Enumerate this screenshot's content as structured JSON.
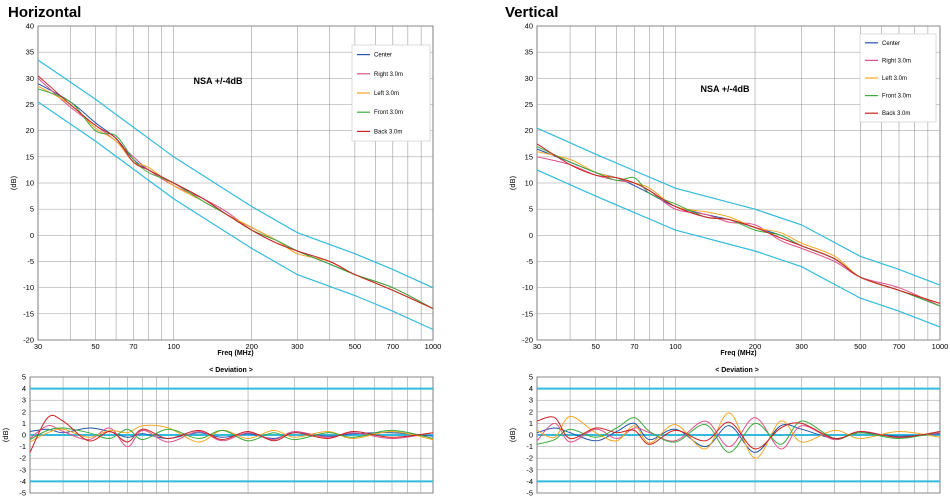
{
  "chart_data": [
    {
      "id": "h-main",
      "type": "line",
      "title": "Horizontal",
      "annotation": "NSA  +/-4dB",
      "xlabel": "Freq (MHz)",
      "ylabel": "(dB)",
      "xscale": "log",
      "xlim": [
        30,
        1000
      ],
      "ylim": [
        -20,
        40
      ],
      "yticks": [
        40,
        35,
        30,
        25,
        20,
        15,
        10,
        5,
        0,
        -5,
        -10,
        -15,
        -20
      ],
      "xtick_labels": [
        "30",
        "50",
        "70",
        "100",
        "200",
        "300",
        "500",
        "700",
        "1000"
      ],
      "xtick_values": [
        30,
        50,
        70,
        100,
        200,
        300,
        500,
        700,
        1000
      ],
      "legend_position": "top-right",
      "limit_lines": [
        {
          "name": "upper",
          "color": "#33BBDD",
          "x": [
            30,
            50,
            100,
            200,
            300,
            500,
            700,
            1000
          ],
          "y": [
            33.5,
            26,
            15,
            5.5,
            0.5,
            -3.5,
            -6.5,
            -10
          ]
        },
        {
          "name": "lower",
          "color": "#33BBDD",
          "x": [
            30,
            50,
            100,
            200,
            300,
            500,
            700,
            1000
          ],
          "y": [
            25.5,
            18,
            7,
            -2.5,
            -7.5,
            -11.5,
            -14.5,
            -18
          ]
        }
      ],
      "series": [
        {
          "name": "Center",
          "color": "#2255AA",
          "x": [
            30,
            40,
            50,
            60,
            70,
            80,
            100,
            130,
            160,
            200,
            250,
            300,
            400,
            500,
            700,
            1000
          ],
          "y": [
            29,
            25.5,
            21.5,
            18.5,
            14.5,
            12.5,
            10,
            7,
            4,
            1.5,
            -1,
            -3,
            -5.5,
            -7.5,
            -10.5,
            -14
          ]
        },
        {
          "name": "Right 3.0m",
          "color": "#E0508C",
          "x": [
            30,
            40,
            50,
            60,
            70,
            80,
            100,
            130,
            160,
            200,
            250,
            300,
            400,
            500,
            700,
            1000
          ],
          "y": [
            30,
            24.5,
            21,
            18,
            15,
            12.5,
            9.5,
            7,
            4.5,
            1,
            -1.5,
            -3,
            -5,
            -7.5,
            -10,
            -14
          ]
        },
        {
          "name": "Left 3.0m",
          "color": "#F5A623",
          "x": [
            30,
            40,
            50,
            60,
            70,
            80,
            100,
            130,
            160,
            200,
            250,
            300,
            400,
            500,
            700,
            1000
          ],
          "y": [
            28.5,
            25,
            20.5,
            18,
            14,
            13,
            9.5,
            6.5,
            4,
            1.5,
            -1,
            -3.5,
            -5,
            -7.5,
            -10.5,
            -14
          ]
        },
        {
          "name": "Front 3.0m",
          "color": "#3DAA3D",
          "x": [
            30,
            40,
            50,
            60,
            70,
            80,
            100,
            130,
            160,
            200,
            250,
            300,
            400,
            500,
            700,
            1000
          ],
          "y": [
            28,
            25.5,
            20,
            19,
            14.5,
            12,
            10,
            6.5,
            4,
            1,
            -1,
            -3,
            -5.5,
            -7.5,
            -10,
            -14
          ]
        },
        {
          "name": "Back 3.0m",
          "color": "#CC2222",
          "x": [
            30,
            40,
            50,
            60,
            70,
            80,
            100,
            130,
            160,
            200,
            250,
            300,
            400,
            500,
            700,
            1000
          ],
          "y": [
            30.5,
            25,
            21,
            18.5,
            14,
            12.5,
            10,
            7,
            4,
            1,
            -1.5,
            -3,
            -5,
            -7.5,
            -10.5,
            -14
          ]
        }
      ]
    },
    {
      "id": "v-main",
      "type": "line",
      "title": "Vertical",
      "annotation": "NSA  +/-4dB",
      "xlabel": "Freq (MHz)",
      "ylabel": "(dB)",
      "xscale": "log",
      "xlim": [
        30,
        1000
      ],
      "ylim": [
        -20,
        40
      ],
      "yticks": [
        40,
        35,
        30,
        25,
        20,
        15,
        10,
        5,
        0,
        -5,
        -10,
        -15,
        -20
      ],
      "xtick_labels": [
        "30",
        "50",
        "70",
        "100",
        "200",
        "300",
        "500",
        "700",
        "1000"
      ],
      "xtick_values": [
        30,
        50,
        70,
        100,
        200,
        300,
        500,
        700,
        1000
      ],
      "legend_position": "top-right",
      "limit_lines": [
        {
          "name": "upper",
          "color": "#33BBDD",
          "x": [
            30,
            50,
            100,
            200,
            300,
            500,
            700,
            1000
          ],
          "y": [
            20.5,
            15.5,
            9,
            5,
            2,
            -4,
            -6.5,
            -9.5
          ]
        },
        {
          "name": "lower",
          "color": "#33BBDD",
          "x": [
            30,
            50,
            100,
            200,
            300,
            500,
            700,
            1000
          ],
          "y": [
            12.5,
            7.5,
            1,
            -3,
            -6,
            -12,
            -14.5,
            -17.5
          ]
        }
      ],
      "series": [
        {
          "name": "Center",
          "color": "#2255AA",
          "x": [
            30,
            40,
            50,
            60,
            70,
            80,
            100,
            130,
            160,
            200,
            250,
            300,
            400,
            500,
            700,
            1000
          ],
          "y": [
            16.5,
            14,
            12,
            11,
            9.5,
            8,
            5.5,
            4,
            3,
            1.5,
            0,
            -2,
            -4.5,
            -8,
            -10.5,
            -13.5
          ]
        },
        {
          "name": "Right 3.0m",
          "color": "#E0508C",
          "x": [
            30,
            40,
            50,
            60,
            70,
            80,
            100,
            130,
            160,
            200,
            250,
            300,
            400,
            500,
            700,
            1000
          ],
          "y": [
            15,
            13.5,
            11.5,
            10.5,
            10,
            8.5,
            5,
            4,
            2.5,
            2,
            -1,
            -2.5,
            -5,
            -8,
            -10,
            -13.5
          ]
        },
        {
          "name": "Left 3.0m",
          "color": "#F5A623",
          "x": [
            30,
            40,
            50,
            60,
            70,
            80,
            100,
            130,
            160,
            200,
            250,
            300,
            400,
            500,
            700,
            1000
          ],
          "y": [
            16,
            14.5,
            12,
            11,
            10,
            9,
            5.5,
            4.5,
            3.5,
            1.5,
            0.5,
            -1.5,
            -4,
            -8,
            -10.5,
            -13
          ]
        },
        {
          "name": "Front 3.0m",
          "color": "#3DAA3D",
          "x": [
            30,
            40,
            50,
            60,
            70,
            80,
            100,
            130,
            160,
            200,
            250,
            300,
            400,
            500,
            700,
            1000
          ],
          "y": [
            17,
            14,
            12,
            10.5,
            11,
            8,
            6,
            3.5,
            3,
            1,
            0,
            -2,
            -4.5,
            -8,
            -10.5,
            -13.5
          ]
        },
        {
          "name": "Back 3.0m",
          "color": "#CC2222",
          "x": [
            30,
            40,
            50,
            60,
            70,
            80,
            100,
            130,
            160,
            200,
            250,
            300,
            400,
            500,
            700,
            1000
          ],
          "y": [
            17.5,
            13.5,
            11.5,
            11,
            10,
            8.5,
            5.5,
            3.5,
            3,
            1.5,
            -0.5,
            -2,
            -4.5,
            -8,
            -10.5,
            -13
          ]
        }
      ]
    },
    {
      "id": "h-dev",
      "type": "line",
      "title": "< Deviation >",
      "ylabel": "(dB)",
      "xscale": "log",
      "xlim": [
        30,
        1000
      ],
      "ylim": [
        -5,
        5
      ],
      "yticks": [
        5,
        4,
        3,
        2,
        1,
        0,
        -1,
        -2,
        -3,
        -4,
        -5
      ],
      "limit_lines": [
        {
          "name": "+4",
          "color": "#33BBDD",
          "x": [
            30,
            1000
          ],
          "y": [
            4,
            4
          ]
        },
        {
          "name": "0",
          "color": "#33BBDD",
          "x": [
            30,
            1000
          ],
          "y": [
            0,
            0
          ]
        },
        {
          "name": "-4",
          "color": "#33BBDD",
          "x": [
            30,
            1000
          ],
          "y": [
            -4,
            -4
          ]
        }
      ],
      "series": [
        {
          "name": "Center",
          "color": "#2255AA",
          "x": [
            30,
            35,
            40,
            50,
            60,
            70,
            80,
            100,
            130,
            160,
            200,
            250,
            300,
            400,
            500,
            700,
            1000
          ],
          "y": [
            0.3,
            0.5,
            0.2,
            0.6,
            0.3,
            -0.2,
            0.1,
            -0.3,
            0.2,
            -0.2,
            0.1,
            -0.3,
            0.2,
            -0.1,
            0.1,
            0.2,
            -0.1
          ]
        },
        {
          "name": "Right 3.0m",
          "color": "#E0508C",
          "x": [
            30,
            35,
            40,
            50,
            60,
            70,
            80,
            100,
            130,
            160,
            200,
            250,
            300,
            400,
            500,
            700,
            1000
          ],
          "y": [
            -0.3,
            0.8,
            0.3,
            -0.4,
            0.6,
            -1.0,
            0.4,
            -0.6,
            0.3,
            -0.5,
            0.2,
            -0.4,
            0.3,
            -0.2,
            0.2,
            -0.3,
            0.2
          ]
        },
        {
          "name": "Left 3.0m",
          "color": "#F5A623",
          "x": [
            30,
            35,
            40,
            50,
            60,
            70,
            80,
            100,
            130,
            160,
            200,
            250,
            300,
            400,
            500,
            700,
            1000
          ],
          "y": [
            -0.6,
            0.2,
            0.5,
            -0.2,
            0.4,
            0.2,
            0.8,
            0.6,
            -0.6,
            0.4,
            -0.3,
            0.4,
            -0.2,
            0.3,
            -0.3,
            0.3,
            -0.4
          ]
        },
        {
          "name": "Front 3.0m",
          "color": "#3DAA3D",
          "x": [
            30,
            35,
            40,
            50,
            60,
            70,
            80,
            100,
            130,
            160,
            200,
            250,
            300,
            400,
            500,
            700,
            1000
          ],
          "y": [
            -0.4,
            0.4,
            0.6,
            0.2,
            -0.3,
            0.5,
            -0.4,
            0.5,
            -0.3,
            0.4,
            -0.5,
            0.2,
            -0.4,
            0.2,
            -0.2,
            0.4,
            -0.3
          ]
        },
        {
          "name": "Back 3.0m",
          "color": "#CC2222",
          "x": [
            30,
            35,
            40,
            50,
            60,
            70,
            80,
            100,
            130,
            160,
            200,
            250,
            300,
            400,
            500,
            700,
            1000
          ],
          "y": [
            -1.5,
            1.5,
            1.2,
            -0.5,
            0.3,
            -0.6,
            0.5,
            -0.3,
            0.4,
            -0.4,
            0.3,
            -0.5,
            0.2,
            -0.3,
            0.3,
            -0.2,
            0.2
          ]
        }
      ]
    },
    {
      "id": "v-dev",
      "type": "line",
      "title": "< Deviation  >",
      "ylabel": "(dB)",
      "xscale": "log",
      "xlim": [
        30,
        1000
      ],
      "ylim": [
        -5,
        5
      ],
      "yticks": [
        5,
        4,
        3,
        2,
        1,
        0,
        -1,
        -2,
        -3,
        -4,
        -5
      ],
      "limit_lines": [
        {
          "name": "+4",
          "color": "#33BBDD",
          "x": [
            30,
            1000
          ],
          "y": [
            4,
            4
          ]
        },
        {
          "name": "0",
          "color": "#33BBDD",
          "x": [
            30,
            1000
          ],
          "y": [
            0,
            0
          ]
        },
        {
          "name": "-4",
          "color": "#33BBDD",
          "x": [
            30,
            1000
          ],
          "y": [
            -4,
            -4
          ]
        }
      ],
      "series": [
        {
          "name": "Center",
          "color": "#2255AA",
          "x": [
            30,
            35,
            40,
            50,
            60,
            70,
            80,
            100,
            130,
            160,
            200,
            250,
            300,
            400,
            500,
            700,
            1000
          ],
          "y": [
            0.2,
            0.6,
            0.2,
            -0.5,
            0.3,
            1.0,
            -0.4,
            0.5,
            -1.0,
            0.8,
            -1.5,
            0.8,
            0.5,
            -0.3,
            0.2,
            -0.1,
            0.1
          ]
        },
        {
          "name": "Right 3.0m",
          "color": "#E0508C",
          "x": [
            30,
            35,
            40,
            50,
            60,
            70,
            80,
            100,
            130,
            160,
            200,
            250,
            300,
            400,
            500,
            700,
            1000
          ],
          "y": [
            -0.5,
            1.0,
            -0.6,
            0.5,
            -0.3,
            0.6,
            0.2,
            -0.5,
            1.2,
            -1.0,
            1.5,
            -1.2,
            0.8,
            -0.4,
            0.3,
            -0.2,
            0.2
          ]
        },
        {
          "name": "Left 3.0m",
          "color": "#F5A623",
          "x": [
            30,
            35,
            40,
            50,
            60,
            70,
            80,
            100,
            130,
            160,
            200,
            250,
            300,
            400,
            500,
            700,
            1000
          ],
          "y": [
            0.4,
            -0.2,
            1.6,
            0.2,
            -0.5,
            0.8,
            -0.7,
            0.9,
            -1.2,
            1.9,
            -2.0,
            1.2,
            -0.6,
            0.4,
            -0.3,
            0.3,
            -0.2
          ]
        },
        {
          "name": "Front 3.0m",
          "color": "#3DAA3D",
          "x": [
            30,
            35,
            40,
            50,
            60,
            70,
            80,
            100,
            130,
            160,
            200,
            250,
            300,
            400,
            500,
            700,
            1000
          ],
          "y": [
            -0.8,
            -0.4,
            0.5,
            -0.2,
            0.6,
            1.5,
            0.3,
            -0.6,
            0.9,
            -1.5,
            1.0,
            -0.8,
            1.2,
            -0.3,
            0.2,
            -0.3,
            0.3
          ]
        },
        {
          "name": "Back 3.0m",
          "color": "#CC2222",
          "x": [
            30,
            35,
            40,
            50,
            60,
            70,
            80,
            100,
            130,
            160,
            200,
            250,
            300,
            400,
            500,
            700,
            1000
          ],
          "y": [
            1.2,
            1.5,
            -0.3,
            0.6,
            0.2,
            0.4,
            -0.8,
            0.4,
            -0.5,
            1.1,
            -1.2,
            0.6,
            1.0,
            -0.3,
            0.3,
            -0.2,
            0.3
          ]
        }
      ]
    }
  ]
}
